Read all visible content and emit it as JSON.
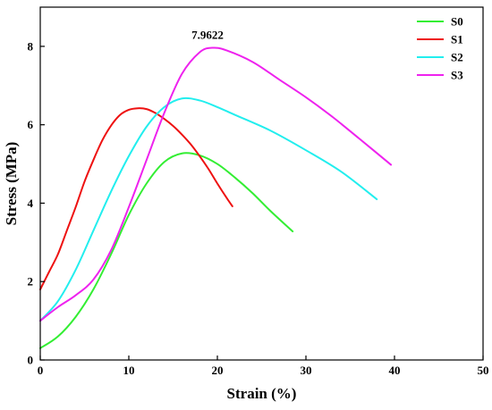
{
  "chart_data": {
    "type": "line",
    "xlabel": "Strain (%)",
    "ylabel": "Stress (MPa)",
    "xlim": [
      0,
      50
    ],
    "ylim": [
      0,
      9
    ],
    "xticks": [
      0,
      10,
      20,
      30,
      40,
      50
    ],
    "yticks": [
      0,
      2,
      4,
      6,
      8
    ],
    "legend_position": "top-right",
    "annotation": {
      "text": "7.9622",
      "x": 19.4,
      "y": 7.9622
    },
    "series": [
      {
        "name": "S0",
        "color": "#33ee33",
        "x": [
          0,
          2,
          4,
          6,
          8,
          10,
          12,
          14,
          16,
          18,
          20,
          22,
          24,
          26,
          28.5
        ],
        "y": [
          0.3,
          0.6,
          1.1,
          1.8,
          2.7,
          3.7,
          4.5,
          5.05,
          5.27,
          5.22,
          5.0,
          4.65,
          4.25,
          3.8,
          3.28
        ]
      },
      {
        "name": "S1",
        "color": "#ee1111",
        "x": [
          0,
          1,
          2,
          3,
          4,
          5,
          6,
          7,
          8,
          9,
          10,
          11,
          12,
          13,
          14,
          15,
          16,
          17,
          18,
          19,
          20,
          21,
          21.7
        ],
        "y": [
          1.8,
          2.25,
          2.7,
          3.3,
          3.9,
          4.55,
          5.1,
          5.6,
          5.98,
          6.25,
          6.38,
          6.42,
          6.4,
          6.3,
          6.15,
          5.97,
          5.75,
          5.5,
          5.2,
          4.87,
          4.5,
          4.15,
          3.92
        ]
      },
      {
        "name": "S2",
        "color": "#22eeee",
        "x": [
          0,
          2,
          4,
          6,
          8,
          10,
          12,
          14,
          16,
          18,
          20,
          22,
          26,
          30,
          34,
          38
        ],
        "y": [
          1.0,
          1.5,
          2.3,
          3.3,
          4.3,
          5.2,
          5.95,
          6.45,
          6.67,
          6.62,
          6.45,
          6.25,
          5.85,
          5.35,
          4.8,
          4.1
        ]
      },
      {
        "name": "S3",
        "color": "#ee22ee",
        "x": [
          0,
          2,
          4,
          6,
          8,
          10,
          12,
          14,
          16,
          18,
          19.4,
          21,
          24,
          27,
          30,
          33,
          36,
          39.6
        ],
        "y": [
          1.0,
          1.35,
          1.65,
          2.05,
          2.8,
          3.9,
          5.1,
          6.3,
          7.3,
          7.85,
          7.9622,
          7.9,
          7.6,
          7.15,
          6.7,
          6.2,
          5.65,
          4.98
        ]
      }
    ]
  }
}
